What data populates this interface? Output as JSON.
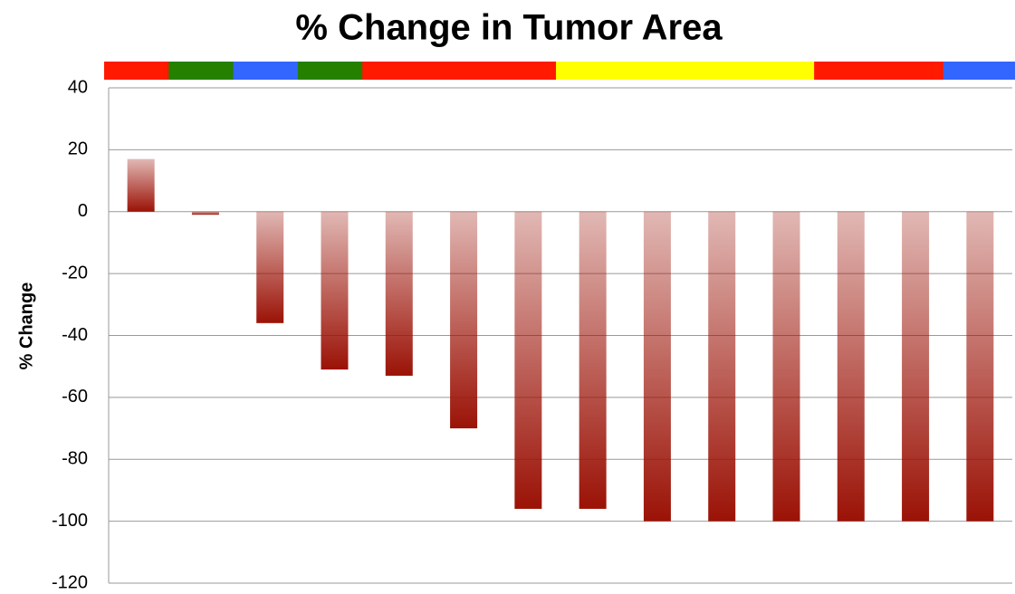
{
  "chart_data": {
    "type": "bar",
    "title": "% Change in Tumor Area",
    "y_label": "% Change",
    "categories": [
      null,
      null,
      null,
      null,
      null,
      null,
      null,
      null,
      null,
      null,
      null,
      null,
      null,
      null
    ],
    "values": [
      17,
      -1,
      -36,
      -51,
      -53,
      -70,
      -96,
      -96,
      -100,
      -100,
      -100,
      -100,
      -100,
      -100
    ],
    "color": "#9b1206",
    "category_colors": [
      "#ff1a00",
      "#258000",
      "#3366ff",
      "#258000",
      "#ff1a00",
      "#ff1a00",
      "#ff1a00",
      "#ffff00",
      "#ffff00",
      "#ffff00",
      "#ffff00",
      "#ff1a00",
      "#ff1a00",
      "#3366ff"
    ],
    "ylim": [
      -120,
      40
    ],
    "yticks": [
      -120,
      -100,
      -80,
      -60,
      -40,
      -20,
      0,
      20,
      40
    ],
    "grid": true
  }
}
